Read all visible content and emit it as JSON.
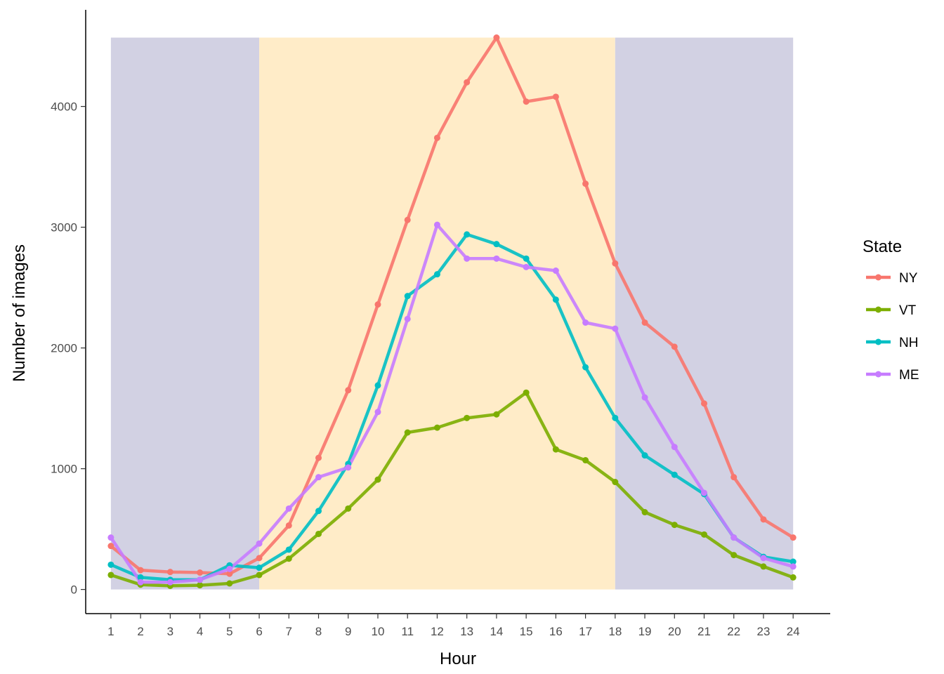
{
  "chart_data": {
    "type": "line",
    "xlabel": "Hour",
    "ylabel": "Number of images",
    "x": [
      1,
      2,
      3,
      4,
      5,
      6,
      7,
      8,
      9,
      10,
      11,
      12,
      13,
      14,
      15,
      16,
      17,
      18,
      19,
      20,
      21,
      22,
      23,
      24
    ],
    "xlim": [
      0.15,
      25.25
    ],
    "ylim": [
      -200,
      4800
    ],
    "y_ticks": [
      0,
      1000,
      2000,
      3000,
      4000
    ],
    "grid": false,
    "legend_title": "State",
    "legend_position": "right",
    "bands": [
      {
        "x_start": 1,
        "x_end": 6,
        "y_top": 4570,
        "color": "#d2d1e3"
      },
      {
        "x_start": 6,
        "x_end": 18,
        "y_top": 4570,
        "color": "#ffecc8"
      },
      {
        "x_start": 18,
        "x_end": 24,
        "y_top": 4570,
        "color": "#d2d1e3"
      }
    ],
    "series": [
      {
        "name": "NY",
        "color": "#f8766d",
        "values": [
          360,
          160,
          145,
          140,
          130,
          260,
          530,
          1090,
          1650,
          2360,
          3060,
          3740,
          4200,
          4570,
          4040,
          4080,
          3360,
          2700,
          2210,
          2010,
          1540,
          930,
          580,
          430
        ]
      },
      {
        "name": "VT",
        "color": "#7cae00",
        "values": [
          120,
          40,
          30,
          35,
          50,
          120,
          255,
          460,
          670,
          910,
          1300,
          1340,
          1420,
          1450,
          1630,
          1160,
          1070,
          890,
          640,
          535,
          455,
          285,
          190,
          100
        ]
      },
      {
        "name": "NH",
        "color": "#00bfc4",
        "values": [
          205,
          100,
          80,
          80,
          200,
          180,
          330,
          650,
          1040,
          1690,
          2430,
          2610,
          2940,
          2860,
          2740,
          2400,
          1840,
          1420,
          1110,
          950,
          790,
          430,
          270,
          230
        ]
      },
      {
        "name": "ME",
        "color": "#c77cff",
        "values": [
          430,
          60,
          60,
          80,
          170,
          380,
          670,
          930,
          1010,
          1470,
          2240,
          3020,
          2740,
          2740,
          2670,
          2640,
          2210,
          2160,
          1590,
          1180,
          800,
          430,
          260,
          190
        ]
      }
    ]
  }
}
